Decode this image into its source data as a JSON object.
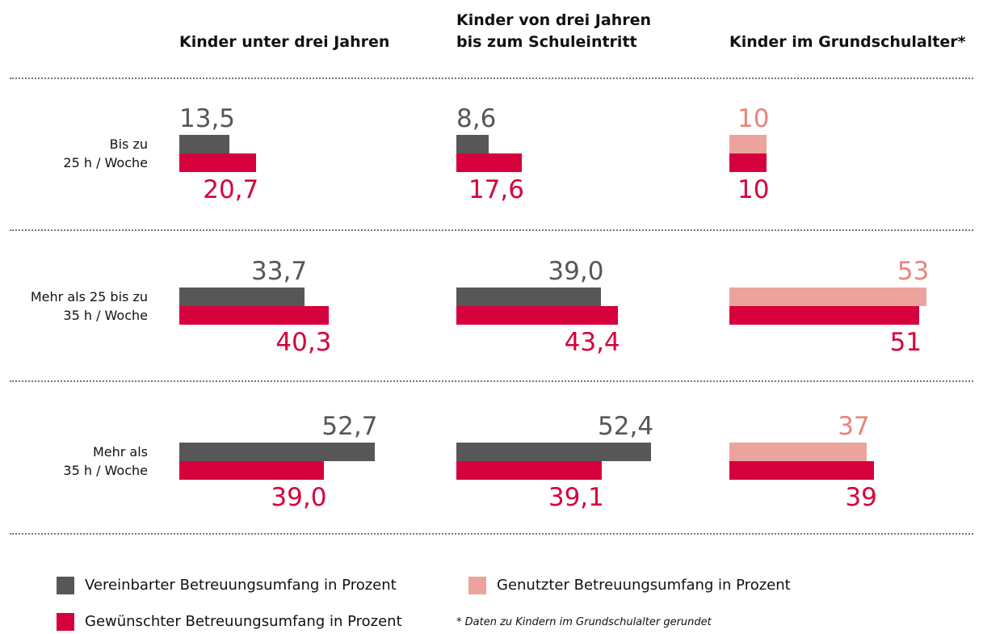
{
  "chart_data": {
    "type": "bar",
    "orientation": "horizontal",
    "categories": [
      "Bis zu\n25 h / Woche",
      "Mehr als 25 bis zu\n35 h / Woche",
      "Mehr als\n35 h / Woche"
    ],
    "legend": [
      {
        "name": "Vereinbarter Betreuungsumfang in Prozent",
        "color": "#575757",
        "label_color": "#575757"
      },
      {
        "name": "Gewünschter Betreuungsumfang in Prozent",
        "color": "#d6003c",
        "label_color": "#d6003c"
      },
      {
        "name": "Genutzter Betreuungsumfang in Prozent",
        "color": "#eca39d",
        "label_color": "#e8857d"
      }
    ],
    "panels": [
      {
        "title": "Kinder unter drei Jahren",
        "series": [
          {
            "legend": 0,
            "values": [
              13.5,
              33.7,
              52.7
            ],
            "value_labels": [
              "13,5",
              "33,7",
              "52,7"
            ]
          },
          {
            "legend": 1,
            "values": [
              20.7,
              40.3,
              39.0
            ],
            "value_labels": [
              "20,7",
              "40,3",
              "39,0"
            ]
          }
        ]
      },
      {
        "title": "Kinder von drei Jahren\nbis zum Schuleintritt",
        "series": [
          {
            "legend": 0,
            "values": [
              8.6,
              39.0,
              52.4
            ],
            "value_labels": [
              "8,6",
              "39,0",
              "52,4"
            ]
          },
          {
            "legend": 1,
            "values": [
              17.6,
              43.4,
              39.1
            ],
            "value_labels": [
              "17,6",
              "43,4",
              "39,1"
            ]
          }
        ]
      },
      {
        "title": "Kinder im Grundschulalter*",
        "series": [
          {
            "legend": 2,
            "values": [
              10,
              53,
              37
            ],
            "value_labels": [
              "10",
              "53",
              "37"
            ]
          },
          {
            "legend": 1,
            "values": [
              10,
              51,
              39
            ],
            "value_labels": [
              "10",
              "51",
              "39"
            ]
          }
        ]
      }
    ],
    "footnote": "* Daten zu Kindern im Grundschulalter gerundet"
  }
}
